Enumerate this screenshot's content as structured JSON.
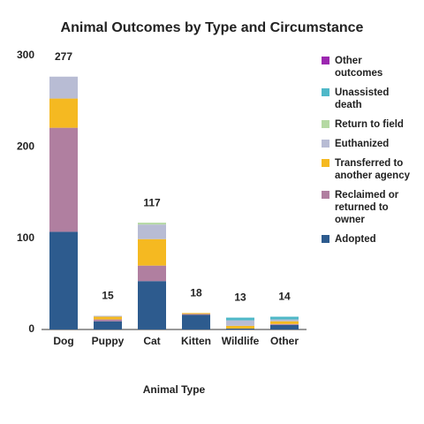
{
  "chart_data": {
    "type": "stacked_bar",
    "title": "Animal Outcomes by Type and Circumstance",
    "x_label": "Animal Type",
    "categories": [
      "Dog",
      "Puppy",
      "Cat",
      "Kitten",
      "Wildlife",
      "Other"
    ],
    "totals": [
      277,
      15,
      117,
      18,
      13,
      14
    ],
    "series": [
      {
        "name": "Adopted",
        "color": "#2d5b8e",
        "values": [
          107,
          9,
          53,
          16,
          1,
          5
        ]
      },
      {
        "name": "Reclaimed or returned to owner",
        "color": "#b07fa0",
        "values": [
          114,
          2,
          17,
          1,
          0,
          1
        ]
      },
      {
        "name": "Transferred to another agency",
        "color": "#f5b921",
        "values": [
          32,
          3,
          29,
          1,
          3,
          3
        ]
      },
      {
        "name": "Euthanized",
        "color": "#b8bcd4",
        "values": [
          24,
          1,
          16,
          0,
          6,
          2
        ]
      },
      {
        "name": "Return to field",
        "color": "#b5d9a4",
        "values": [
          0,
          0,
          2,
          0,
          0,
          0
        ]
      },
      {
        "name": "Unassisted death",
        "color": "#4fb8c8",
        "values": [
          0,
          0,
          0,
          0,
          3,
          3
        ]
      },
      {
        "name": "Other outcomes",
        "color": "#9c27b0",
        "values": [
          0,
          0,
          0,
          0,
          0,
          0
        ]
      }
    ],
    "ylim": [
      0,
      300
    ],
    "yticks": [
      0,
      100,
      200,
      300
    ],
    "grid": false
  }
}
